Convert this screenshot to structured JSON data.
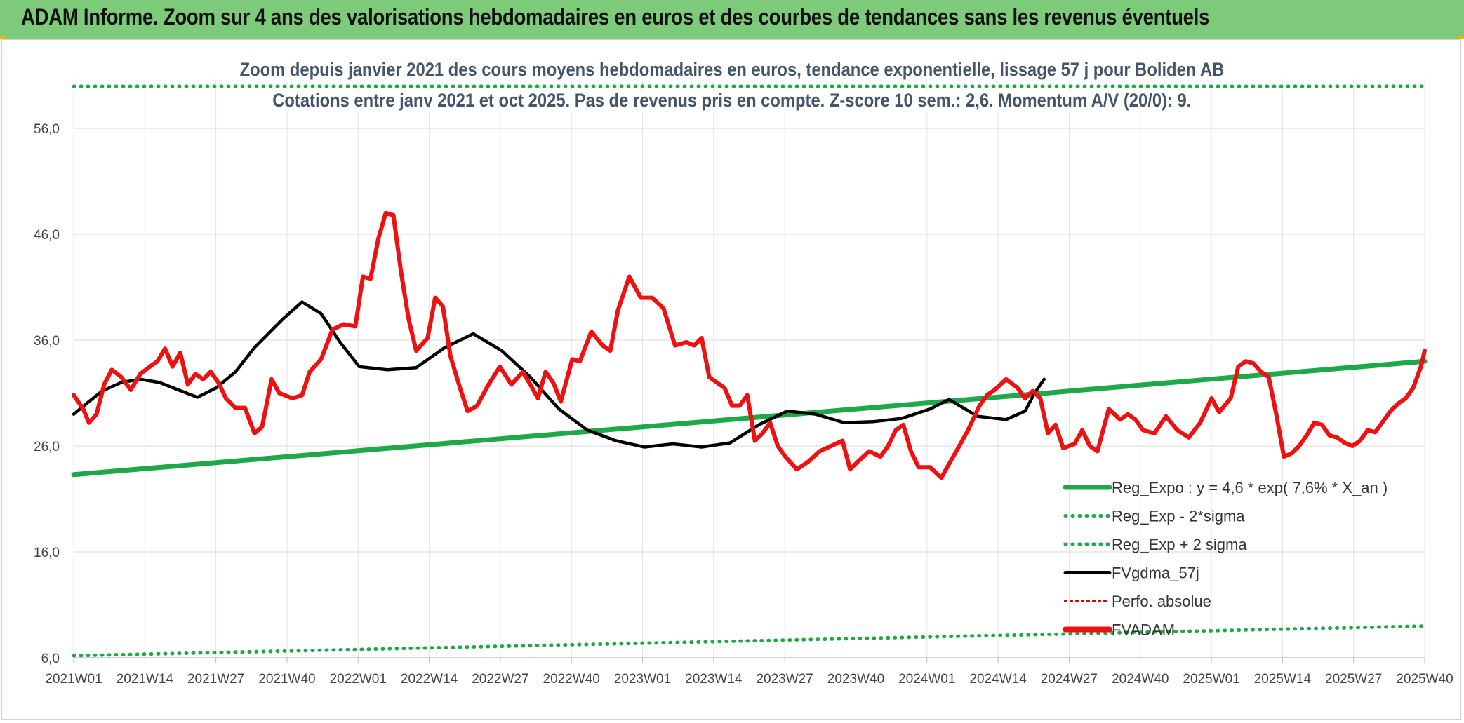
{
  "header": {
    "title": "ADAM Informe. Zoom sur 4 ans des valorisations hebdomadaires en euros et des courbes de tendances sans les revenus éventuels"
  },
  "chart_data": {
    "type": "line",
    "title": "Zoom depuis janvier 2021 des cours moyens hebdomadaires en euros, tendance exponentielle, lissage 57 j pour Boliden AB",
    "subtitle": "Cotations entre janv 2021 et oct 2025. Pas de revenus pris en compte. Z-score 10 sem.: 2,6. Momentum A/V (20/0): 9.",
    "ylim": [
      6,
      56
    ],
    "y_ticks": [
      "56,0",
      "46,0",
      "36,0",
      "26,0",
      "16,0",
      "6,0"
    ],
    "y_tick_values": [
      56,
      46,
      36,
      26,
      16,
      6
    ],
    "x_ticks": [
      "2021W01",
      "2021W14",
      "2021W27",
      "2021W40",
      "2022W01",
      "2022W14",
      "2022W27",
      "2022W40",
      "2023W01",
      "2023W14",
      "2023W27",
      "2023W40",
      "2024W01",
      "2024W14",
      "2024W27",
      "2024W40",
      "2025W01",
      "2025W14",
      "2025W27",
      "2025W40"
    ],
    "x_count": 248,
    "series": [
      {
        "name": "Reg_Expo : y = 4,6 * exp( 7,6% *  X_an )",
        "color": "#1ea84a",
        "style": "solid",
        "endpoints": [
          23.3,
          34.0
        ]
      },
      {
        "name": "Reg_Exp - 2*sigma",
        "color": "#1ea84a",
        "style": "dotted",
        "endpoints": [
          6.2,
          9.0
        ]
      },
      {
        "name": "Reg_Exp + 2 sigma",
        "color": "#1ea84a",
        "style": "dotted",
        "endpoints": [
          60.0,
          60.0
        ]
      },
      {
        "name": "FVgdma_57j",
        "color": "#000000",
        "style": "solid",
        "points": [
          [
            0,
            29.0
          ],
          [
            8,
            30.2
          ],
          [
            15,
            31.2
          ],
          [
            25,
            32.0
          ],
          [
            35,
            32.3
          ],
          [
            45,
            32.0
          ],
          [
            55,
            31.3
          ],
          [
            65,
            30.6
          ],
          [
            75,
            31.5
          ],
          [
            85,
            33.0
          ],
          [
            95,
            35.3
          ],
          [
            110,
            38.0
          ],
          [
            120,
            39.6
          ],
          [
            130,
            38.5
          ],
          [
            140,
            35.8
          ],
          [
            150,
            33.5
          ],
          [
            165,
            33.2
          ],
          [
            180,
            33.4
          ],
          [
            195,
            35.3
          ],
          [
            210,
            36.6
          ],
          [
            225,
            35.0
          ],
          [
            240,
            32.5
          ],
          [
            255,
            29.5
          ],
          [
            270,
            27.5
          ],
          [
            285,
            26.5
          ],
          [
            300,
            25.9
          ],
          [
            315,
            26.2
          ],
          [
            330,
            25.9
          ],
          [
            345,
            26.3
          ],
          [
            360,
            28.0
          ],
          [
            375,
            29.3
          ],
          [
            390,
            29.0
          ],
          [
            405,
            28.2
          ],
          [
            420,
            28.3
          ],
          [
            435,
            28.6
          ],
          [
            450,
            29.5
          ],
          [
            460,
            30.4
          ],
          [
            475,
            28.8
          ],
          [
            490,
            28.5
          ],
          [
            500,
            29.3
          ],
          [
            505,
            31.0
          ],
          [
            510,
            32.3
          ]
        ]
      },
      {
        "name": "Perfo. absolue",
        "color": "#d00000",
        "style": "dotted",
        "points": []
      },
      {
        "name": "FVADAM",
        "color": "#ee1111",
        "style": "solid",
        "points": [
          [
            0,
            30.8
          ],
          [
            5,
            29.5
          ],
          [
            8,
            28.2
          ],
          [
            12,
            29.0
          ],
          [
            16,
            31.8
          ],
          [
            20,
            33.2
          ],
          [
            25,
            32.5
          ],
          [
            30,
            31.3
          ],
          [
            35,
            32.8
          ],
          [
            40,
            33.5
          ],
          [
            44,
            34.0
          ],
          [
            48,
            35.2
          ],
          [
            52,
            33.5
          ],
          [
            56,
            34.8
          ],
          [
            60,
            31.8
          ],
          [
            64,
            32.8
          ],
          [
            68,
            32.3
          ],
          [
            72,
            33.0
          ],
          [
            76,
            32.0
          ],
          [
            80,
            30.5
          ],
          [
            85,
            29.6
          ],
          [
            90,
            29.6
          ],
          [
            95,
            27.2
          ],
          [
            99,
            27.8
          ],
          [
            104,
            32.3
          ],
          [
            108,
            31.0
          ],
          [
            115,
            30.5
          ],
          [
            120,
            30.8
          ],
          [
            124,
            33.0
          ],
          [
            130,
            34.2
          ],
          [
            136,
            37.0
          ],
          [
            142,
            37.5
          ],
          [
            148,
            37.3
          ],
          [
            152,
            42.0
          ],
          [
            156,
            41.8
          ],
          [
            160,
            45.5
          ],
          [
            164,
            48.0
          ],
          [
            168,
            47.8
          ],
          [
            172,
            42.5
          ],
          [
            176,
            38.0
          ],
          [
            180,
            35.0
          ],
          [
            186,
            36.2
          ],
          [
            190,
            40.0
          ],
          [
            194,
            39.2
          ],
          [
            198,
            34.5
          ],
          [
            203,
            31.5
          ],
          [
            207,
            29.3
          ],
          [
            212,
            29.8
          ],
          [
            218,
            31.8
          ],
          [
            224,
            33.5
          ],
          [
            230,
            31.8
          ],
          [
            236,
            33.0
          ],
          [
            240,
            31.8
          ],
          [
            244,
            30.5
          ],
          [
            248,
            33.0
          ],
          [
            252,
            32.0
          ],
          [
            256,
            30.2
          ],
          [
            262,
            34.2
          ],
          [
            266,
            34.0
          ],
          [
            272,
            36.8
          ],
          [
            278,
            35.5
          ],
          [
            282,
            35.0
          ],
          [
            286,
            38.8
          ],
          [
            292,
            42.0
          ],
          [
            298,
            40.0
          ],
          [
            304,
            40.0
          ],
          [
            310,
            39.0
          ],
          [
            316,
            35.5
          ],
          [
            322,
            35.8
          ],
          [
            326,
            35.5
          ],
          [
            330,
            36.2
          ],
          [
            334,
            32.5
          ],
          [
            338,
            32.0
          ],
          [
            342,
            31.5
          ],
          [
            346,
            29.8
          ],
          [
            350,
            29.8
          ],
          [
            354,
            30.8
          ],
          [
            358,
            26.5
          ],
          [
            362,
            27.2
          ],
          [
            366,
            28.2
          ],
          [
            370,
            26.0
          ],
          [
            374,
            25.0
          ],
          [
            380,
            23.8
          ],
          [
            386,
            24.5
          ],
          [
            392,
            25.5
          ],
          [
            398,
            26.0
          ],
          [
            404,
            26.5
          ],
          [
            408,
            23.8
          ],
          [
            412,
            24.5
          ],
          [
            418,
            25.5
          ],
          [
            424,
            25.0
          ],
          [
            428,
            26.0
          ],
          [
            432,
            27.5
          ],
          [
            436,
            28.0
          ],
          [
            440,
            25.5
          ],
          [
            444,
            24.0
          ],
          [
            450,
            24.0
          ],
          [
            456,
            23.0
          ],
          [
            460,
            24.3
          ],
          [
            466,
            26.2
          ],
          [
            470,
            27.5
          ],
          [
            476,
            29.8
          ],
          [
            480,
            30.8
          ],
          [
            484,
            31.3
          ],
          [
            490,
            32.3
          ],
          [
            496,
            31.5
          ],
          [
            500,
            30.5
          ],
          [
            504,
            31.2
          ],
          [
            508,
            30.5
          ],
          [
            512,
            27.2
          ],
          [
            516,
            28.0
          ],
          [
            520,
            25.8
          ],
          [
            526,
            26.2
          ],
          [
            530,
            27.5
          ],
          [
            534,
            26.0
          ],
          [
            538,
            25.5
          ],
          [
            544,
            29.5
          ],
          [
            550,
            28.5
          ],
          [
            554,
            29.0
          ],
          [
            558,
            28.5
          ],
          [
            562,
            27.5
          ],
          [
            568,
            27.2
          ],
          [
            574,
            28.8
          ],
          [
            580,
            27.5
          ],
          [
            586,
            26.8
          ],
          [
            592,
            28.2
          ],
          [
            598,
            30.5
          ],
          [
            602,
            29.2
          ],
          [
            608,
            30.5
          ],
          [
            612,
            33.5
          ],
          [
            616,
            34.0
          ],
          [
            620,
            33.8
          ],
          [
            624,
            33.0
          ],
          [
            628,
            32.5
          ],
          [
            632,
            29.0
          ],
          [
            636,
            25.0
          ],
          [
            640,
            25.3
          ],
          [
            644,
            26.0
          ],
          [
            648,
            27.0
          ],
          [
            652,
            28.2
          ],
          [
            656,
            28.0
          ],
          [
            660,
            27.0
          ],
          [
            664,
            26.8
          ],
          [
            668,
            26.3
          ],
          [
            672,
            26.0
          ],
          [
            676,
            26.5
          ],
          [
            680,
            27.5
          ],
          [
            684,
            27.3
          ],
          [
            688,
            28.3
          ],
          [
            692,
            29.3
          ],
          [
            696,
            30.0
          ],
          [
            700,
            30.5
          ],
          [
            704,
            31.5
          ],
          [
            708,
            33.5
          ],
          [
            710,
            35.0
          ]
        ]
      }
    ],
    "legend": [
      "Reg_Expo : y = 4,6 * exp( 7,6% *  X_an )",
      "Reg_Exp - 2*sigma",
      "Reg_Exp + 2 sigma",
      "FVgdma_57j",
      "Perfo. absolue",
      "FVADAM"
    ],
    "legend_position": "bottom-right"
  }
}
